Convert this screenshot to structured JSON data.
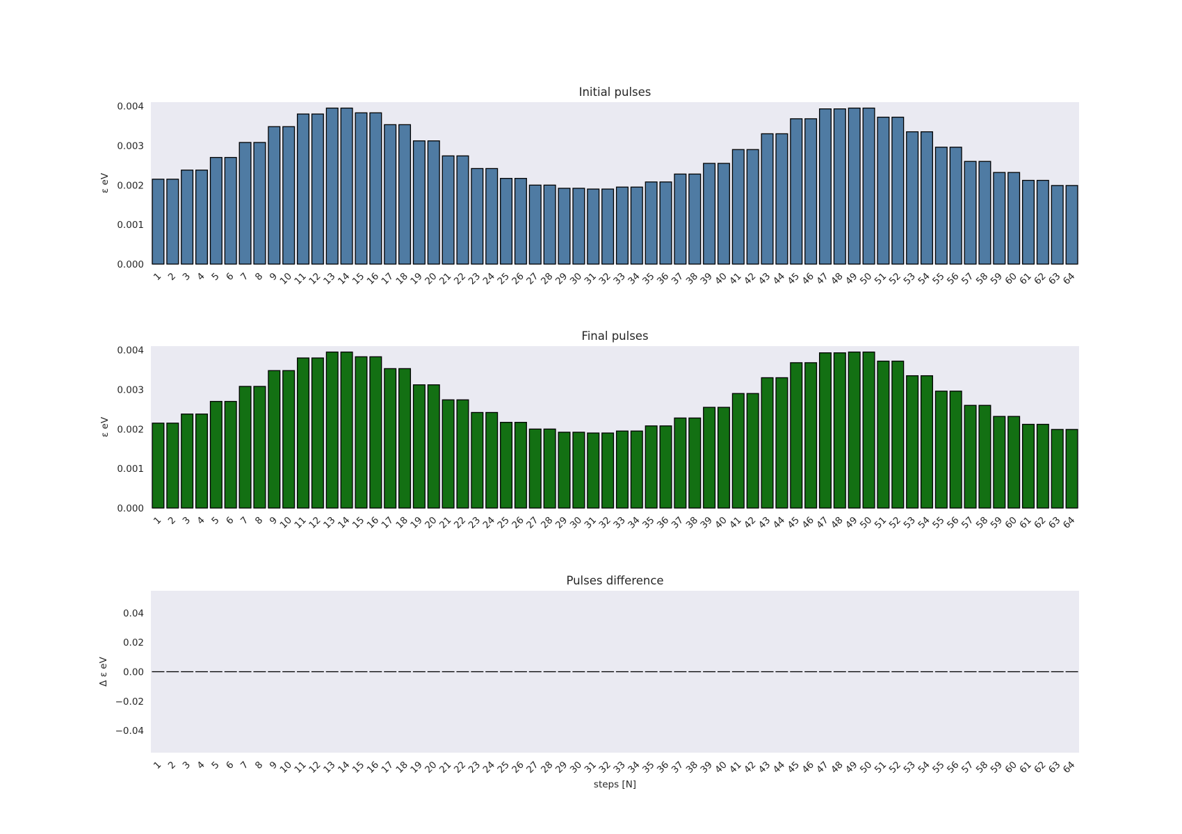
{
  "colors": {
    "initial": "#4f7ba3",
    "final": "#137013",
    "background": "#eaeaf2",
    "edge": "#000000"
  },
  "chart_data": [
    {
      "type": "bar",
      "title": "Initial pulses",
      "ylabel": "ε eV",
      "xlabel": "",
      "ylim": [
        0,
        0.0041
      ],
      "yticks": [
        "0.000",
        "0.001",
        "0.002",
        "0.003",
        "0.004"
      ],
      "grid": false,
      "color": "#4f7ba3",
      "categories": [
        "1",
        "2",
        "3",
        "4",
        "5",
        "6",
        "7",
        "8",
        "9",
        "10",
        "11",
        "12",
        "13",
        "14",
        "15",
        "16",
        "17",
        "18",
        "19",
        "20",
        "21",
        "22",
        "23",
        "24",
        "25",
        "26",
        "27",
        "28",
        "29",
        "30",
        "31",
        "32",
        "33",
        "34",
        "35",
        "36",
        "37",
        "38",
        "39",
        "40",
        "41",
        "42",
        "43",
        "44",
        "45",
        "46",
        "47",
        "48",
        "49",
        "50",
        "51",
        "52",
        "53",
        "54",
        "55",
        "56",
        "57",
        "58",
        "59",
        "60",
        "61",
        "62",
        "63",
        "64"
      ],
      "values": [
        0.00215,
        0.00215,
        0.00238,
        0.00238,
        0.0027,
        0.0027,
        0.00308,
        0.00308,
        0.00348,
        0.00348,
        0.0038,
        0.0038,
        0.00395,
        0.00395,
        0.00383,
        0.00383,
        0.00353,
        0.00353,
        0.00312,
        0.00312,
        0.00274,
        0.00274,
        0.00242,
        0.00242,
        0.00217,
        0.00217,
        0.002,
        0.002,
        0.00192,
        0.00192,
        0.0019,
        0.0019,
        0.00195,
        0.00195,
        0.00208,
        0.00208,
        0.00228,
        0.00228,
        0.00255,
        0.00255,
        0.0029,
        0.0029,
        0.0033,
        0.0033,
        0.00368,
        0.00368,
        0.00393,
        0.00393,
        0.00395,
        0.00395,
        0.00372,
        0.00372,
        0.00335,
        0.00335,
        0.00296,
        0.00296,
        0.0026,
        0.0026,
        0.00232,
        0.00232,
        0.00212,
        0.00212,
        0.00199,
        0.00199
      ]
    },
    {
      "type": "bar",
      "title": "Final pulses",
      "ylabel": "ε eV",
      "xlabel": "",
      "ylim": [
        0,
        0.0041
      ],
      "yticks": [
        "0.000",
        "0.001",
        "0.002",
        "0.003",
        "0.004"
      ],
      "grid": false,
      "color": "#137013",
      "categories": [
        "1",
        "2",
        "3",
        "4",
        "5",
        "6",
        "7",
        "8",
        "9",
        "10",
        "11",
        "12",
        "13",
        "14",
        "15",
        "16",
        "17",
        "18",
        "19",
        "20",
        "21",
        "22",
        "23",
        "24",
        "25",
        "26",
        "27",
        "28",
        "29",
        "30",
        "31",
        "32",
        "33",
        "34",
        "35",
        "36",
        "37",
        "38",
        "39",
        "40",
        "41",
        "42",
        "43",
        "44",
        "45",
        "46",
        "47",
        "48",
        "49",
        "50",
        "51",
        "52",
        "53",
        "54",
        "55",
        "56",
        "57",
        "58",
        "59",
        "60",
        "61",
        "62",
        "63",
        "64"
      ],
      "values": [
        0.00215,
        0.00215,
        0.00238,
        0.00238,
        0.0027,
        0.0027,
        0.00308,
        0.00308,
        0.00348,
        0.00348,
        0.0038,
        0.0038,
        0.00395,
        0.00395,
        0.00383,
        0.00383,
        0.00353,
        0.00353,
        0.00312,
        0.00312,
        0.00274,
        0.00274,
        0.00242,
        0.00242,
        0.00217,
        0.00217,
        0.002,
        0.002,
        0.00192,
        0.00192,
        0.0019,
        0.0019,
        0.00195,
        0.00195,
        0.00208,
        0.00208,
        0.00228,
        0.00228,
        0.00255,
        0.00255,
        0.0029,
        0.0029,
        0.0033,
        0.0033,
        0.00368,
        0.00368,
        0.00393,
        0.00393,
        0.00395,
        0.00395,
        0.00372,
        0.00372,
        0.00335,
        0.00335,
        0.00296,
        0.00296,
        0.0026,
        0.0026,
        0.00232,
        0.00232,
        0.00212,
        0.00212,
        0.00199,
        0.00199
      ]
    },
    {
      "type": "bar",
      "title": "Pulses difference",
      "ylabel": "Δ ε eV",
      "xlabel": "steps [N]",
      "ylim": [
        -0.055,
        0.055
      ],
      "yticks": [
        "−0.04",
        "−0.02",
        "0.00",
        "0.02",
        "0.04"
      ],
      "ytick_values": [
        -0.04,
        -0.02,
        0.0,
        0.02,
        0.04
      ],
      "grid": false,
      "color": "#000000",
      "categories": [
        "1",
        "2",
        "3",
        "4",
        "5",
        "6",
        "7",
        "8",
        "9",
        "10",
        "11",
        "12",
        "13",
        "14",
        "15",
        "16",
        "17",
        "18",
        "19",
        "20",
        "21",
        "22",
        "23",
        "24",
        "25",
        "26",
        "27",
        "28",
        "29",
        "30",
        "31",
        "32",
        "33",
        "34",
        "35",
        "36",
        "37",
        "38",
        "39",
        "40",
        "41",
        "42",
        "43",
        "44",
        "45",
        "46",
        "47",
        "48",
        "49",
        "50",
        "51",
        "52",
        "53",
        "54",
        "55",
        "56",
        "57",
        "58",
        "59",
        "60",
        "61",
        "62",
        "63",
        "64"
      ],
      "values": [
        0,
        0,
        0,
        0,
        0,
        0,
        0,
        0,
        0,
        0,
        0,
        0,
        0,
        0,
        0,
        0,
        0,
        0,
        0,
        0,
        0,
        0,
        0,
        0,
        0,
        0,
        0,
        0,
        0,
        0,
        0,
        0,
        0,
        0,
        0,
        0,
        0,
        0,
        0,
        0,
        0,
        0,
        0,
        0,
        0,
        0,
        0,
        0,
        0,
        0,
        0,
        0,
        0,
        0,
        0,
        0,
        0,
        0,
        0,
        0,
        0,
        0,
        0,
        0
      ]
    }
  ]
}
